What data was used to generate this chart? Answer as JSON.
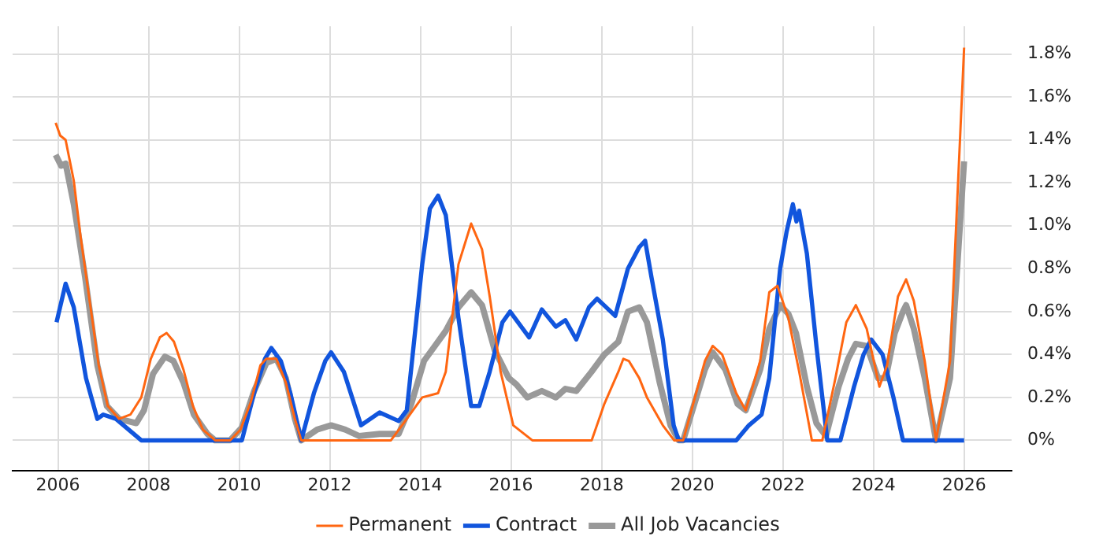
{
  "chart_data": {
    "type": "line",
    "series": [
      {
        "name": "Permanent",
        "color": "#ff6611",
        "x": [
          2005.95,
          2006.05,
          2006.17,
          2006.35,
          2006.5,
          2006.7,
          2006.9,
          2007.1,
          2007.35,
          2007.6,
          2007.84,
          2008.05,
          2008.25,
          2008.4,
          2008.56,
          2008.77,
          2008.98,
          2009.2,
          2009.47,
          2009.8,
          2010.03,
          2010.26,
          2010.47,
          2010.6,
          2010.82,
          2011.03,
          2011.23,
          2011.37,
          2013.35,
          2013.7,
          2014.04,
          2014.39,
          2014.56,
          2014.84,
          2015.12,
          2015.36,
          2015.53,
          2015.77,
          2016.05,
          2016.47,
          2017.78,
          2018.06,
          2018.37,
          2018.48,
          2018.6,
          2018.83,
          2019.0,
          2019.35,
          2019.6,
          2019.8,
          2020.28,
          2020.45,
          2020.66,
          2020.97,
          2021.18,
          2021.5,
          2021.7,
          2021.88,
          2022.12,
          2022.36,
          2022.64,
          2022.87,
          2023.16,
          2023.4,
          2023.61,
          2023.85,
          2024.13,
          2024.3,
          2024.54,
          2024.72,
          2024.89,
          2025.13,
          2025.38,
          2025.69,
          2026.0
        ],
        "values": [
          1.48,
          1.42,
          1.4,
          1.21,
          0.95,
          0.65,
          0.35,
          0.16,
          0.1,
          0.12,
          0.2,
          0.38,
          0.48,
          0.5,
          0.46,
          0.33,
          0.16,
          0.05,
          0,
          0,
          0.05,
          0.18,
          0.35,
          0.38,
          0.38,
          0.27,
          0.1,
          0,
          0,
          0.1,
          0.2,
          0.22,
          0.32,
          0.82,
          1.01,
          0.89,
          0.67,
          0.32,
          0.07,
          0,
          0,
          0.17,
          0.32,
          0.38,
          0.37,
          0.29,
          0.2,
          0.07,
          0,
          0,
          0.37,
          0.44,
          0.4,
          0.22,
          0.14,
          0.37,
          0.69,
          0.72,
          0.57,
          0.32,
          0,
          0,
          0.29,
          0.55,
          0.63,
          0.52,
          0.25,
          0.35,
          0.67,
          0.75,
          0.65,
          0.37,
          0,
          0.37,
          1.83
        ]
      },
      {
        "name": "Contract",
        "color": "#1155dd",
        "x": [
          2005.97,
          2006.17,
          2006.35,
          2006.62,
          2006.87,
          2007.0,
          2007.28,
          2007.84,
          2010.06,
          2010.33,
          2010.57,
          2010.71,
          2010.92,
          2011.13,
          2011.37,
          2011.65,
          2011.9,
          2012.03,
          2012.31,
          2012.69,
          2013.1,
          2013.52,
          2013.7,
          2014.04,
          2014.21,
          2014.39,
          2014.56,
          2014.84,
          2015.12,
          2015.3,
          2015.53,
          2015.81,
          2015.98,
          2016.4,
          2016.68,
          2016.99,
          2017.2,
          2017.44,
          2017.72,
          2017.9,
          2018.3,
          2018.58,
          2018.83,
          2018.96,
          2019.1,
          2019.35,
          2019.59,
          2019.7,
          2020.97,
          2021.25,
          2021.53,
          2021.7,
          2021.94,
          2022.08,
          2022.22,
          2022.3,
          2022.36,
          2022.53,
          2022.74,
          2022.98,
          2023.27,
          2023.57,
          2023.78,
          2023.95,
          2024.2,
          2024.44,
          2024.65,
          2026.0
        ],
        "values": [
          0.55,
          0.73,
          0.62,
          0.29,
          0.1,
          0.12,
          0.1,
          0,
          0,
          0.22,
          0.38,
          0.43,
          0.37,
          0.22,
          0,
          0.22,
          0.37,
          0.41,
          0.32,
          0.07,
          0.13,
          0.09,
          0.14,
          0.82,
          1.08,
          1.14,
          1.05,
          0.57,
          0.16,
          0.16,
          0.32,
          0.55,
          0.6,
          0.48,
          0.61,
          0.53,
          0.56,
          0.47,
          0.62,
          0.66,
          0.58,
          0.8,
          0.9,
          0.93,
          0.76,
          0.47,
          0.07,
          0,
          0,
          0.07,
          0.12,
          0.29,
          0.8,
          0.97,
          1.1,
          1.02,
          1.07,
          0.87,
          0.44,
          0,
          0,
          0.25,
          0.4,
          0.47,
          0.4,
          0.2,
          0,
          0
        ]
      },
      {
        "name": "All Job Vacancies",
        "color": "#999999",
        "x": [
          2005.95,
          2006.07,
          2006.17,
          2006.35,
          2006.6,
          2006.87,
          2007.08,
          2007.35,
          2007.73,
          2007.9,
          2008.1,
          2008.36,
          2008.55,
          2008.77,
          2009.0,
          2009.3,
          2009.47,
          2009.8,
          2010.06,
          2010.33,
          2010.6,
          2010.82,
          2011.03,
          2011.23,
          2011.37,
          2011.72,
          2012.03,
          2012.34,
          2012.65,
          2013.1,
          2013.52,
          2013.8,
          2014.08,
          2014.32,
          2014.56,
          2014.84,
          2015.12,
          2015.36,
          2015.64,
          2015.95,
          2016.12,
          2016.36,
          2016.68,
          2016.99,
          2017.2,
          2017.44,
          2017.78,
          2018.06,
          2018.37,
          2018.58,
          2018.83,
          2019.0,
          2019.28,
          2019.52,
          2019.7,
          2019.8,
          2020.28,
          2020.45,
          2020.73,
          2021.0,
          2021.18,
          2021.5,
          2021.7,
          2021.94,
          2022.12,
          2022.29,
          2022.53,
          2022.74,
          2022.95,
          2023.23,
          2023.44,
          2023.61,
          2023.85,
          2024.1,
          2024.27,
          2024.47,
          2024.65,
          2024.72,
          2024.89,
          2025.13,
          2025.38,
          2025.69,
          2026.0
        ],
        "values": [
          1.33,
          1.28,
          1.29,
          1.1,
          0.76,
          0.35,
          0.16,
          0.1,
          0.08,
          0.14,
          0.31,
          0.39,
          0.37,
          0.27,
          0.12,
          0.03,
          0,
          0,
          0.06,
          0.23,
          0.36,
          0.38,
          0.29,
          0.1,
          0,
          0.05,
          0.07,
          0.05,
          0.02,
          0.03,
          0.03,
          0.17,
          0.37,
          0.44,
          0.51,
          0.62,
          0.69,
          0.63,
          0.42,
          0.29,
          0.26,
          0.2,
          0.23,
          0.2,
          0.24,
          0.23,
          0.32,
          0.4,
          0.46,
          0.6,
          0.62,
          0.55,
          0.27,
          0.07,
          0,
          0,
          0.33,
          0.41,
          0.33,
          0.17,
          0.14,
          0.33,
          0.52,
          0.63,
          0.59,
          0.5,
          0.25,
          0.08,
          0.02,
          0.25,
          0.38,
          0.45,
          0.44,
          0.29,
          0.29,
          0.5,
          0.6,
          0.63,
          0.52,
          0.29,
          0,
          0.29,
          1.3
        ]
      }
    ],
    "xlim": [
      2005,
      2027.05
    ],
    "xticks": [
      2006,
      2008,
      2010,
      2012,
      2014,
      2016,
      2018,
      2020,
      2022,
      2024,
      2026
    ],
    "ylim": [
      -0.14,
      1.93
    ],
    "yticks": [
      {
        "value": 0,
        "label": "0%"
      },
      {
        "value": 0.2,
        "label": "0.2%"
      },
      {
        "value": 0.4,
        "label": "0.4%"
      },
      {
        "value": 0.6,
        "label": "0.6%"
      },
      {
        "value": 0.8,
        "label": "0.8%"
      },
      {
        "value": 1.0,
        "label": "1.0%"
      },
      {
        "value": 1.2,
        "label": "1.2%"
      },
      {
        "value": 1.4,
        "label": "1.4%"
      },
      {
        "value": 1.6,
        "label": "1.6%"
      },
      {
        "value": 1.8,
        "label": "1.8%"
      }
    ],
    "grid": true,
    "legend": "bottom",
    "marker": "none",
    "line_style": "solid"
  }
}
